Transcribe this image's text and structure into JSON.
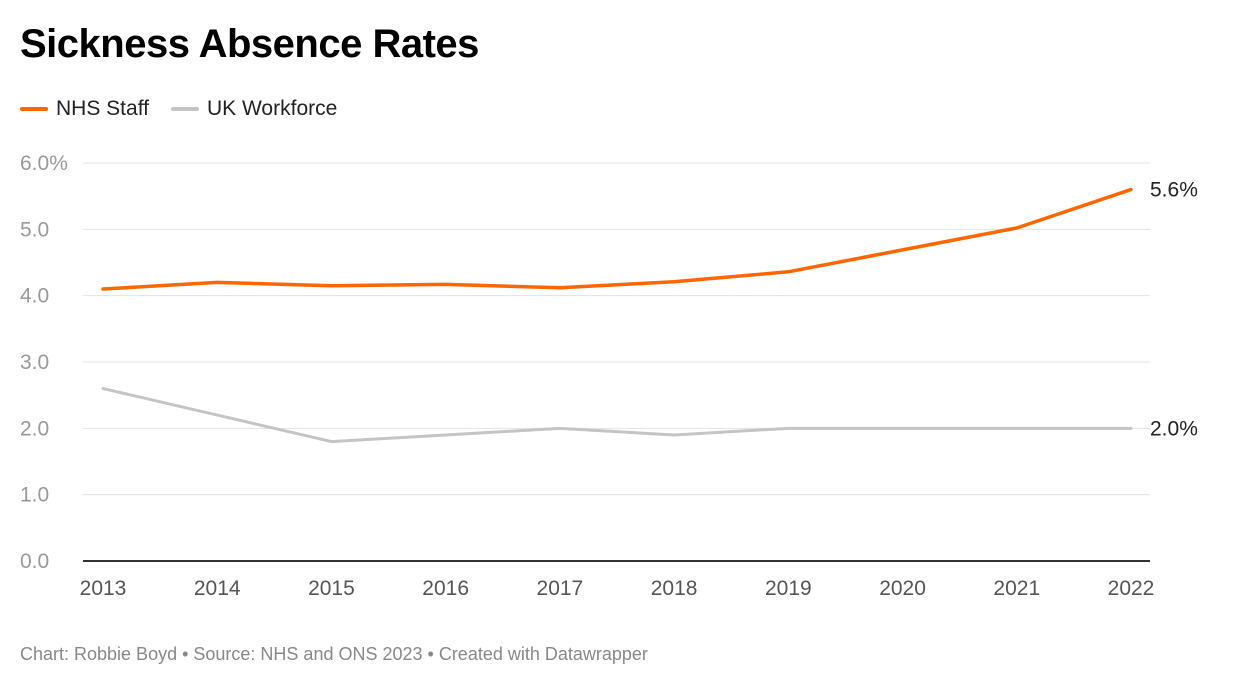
{
  "chart_data": {
    "type": "line",
    "title": "Sickness Absence Rates",
    "x": [
      "2013",
      "2014",
      "2015",
      "2016",
      "2017",
      "2018",
      "2019",
      "2020",
      "2021",
      "2022"
    ],
    "series": [
      {
        "name": "NHS Staff",
        "color": "#ff6600",
        "values": [
          4.1,
          4.2,
          4.15,
          4.17,
          4.12,
          4.21,
          4.36,
          4.69,
          5.02,
          5.6
        ],
        "end_label": "5.6%"
      },
      {
        "name": "UK Workforce",
        "color": "#c4c4c4",
        "values": [
          2.6,
          2.2,
          1.8,
          1.9,
          2.0,
          1.9,
          2.0,
          2.0,
          2.0,
          2.0
        ],
        "end_label": "2.0%"
      }
    ],
    "y_ticks": [
      "0.0",
      "1.0",
      "2.0",
      "3.0",
      "4.0",
      "5.0",
      "6.0%"
    ],
    "ylim": [
      0,
      6
    ],
    "grid": true,
    "legend": "top-left"
  },
  "footer": "Chart: Robbie Boyd • Source: NHS and ONS 2023 • Created with Datawrapper"
}
